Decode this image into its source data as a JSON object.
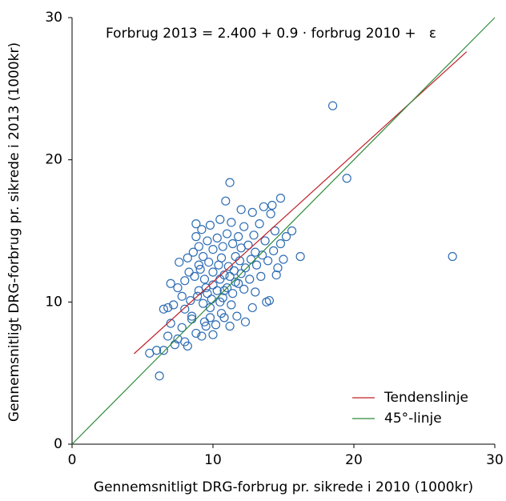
{
  "chart_data": {
    "type": "scatter",
    "annotation": "Forbrug 2013 = 2.400 + 0.9 · forbrug 2010 +   ε",
    "x_label": "Gennemsnitligt DRG-forbrug pr. sikrede i 2010 (1000kr)",
    "y_label": "Gennemsnitligt DRG-forbrug pr. sikrede i 2013 (1000kr)",
    "xlim": [
      0,
      30
    ],
    "ylim": [
      0,
      30
    ],
    "xticks": [
      0,
      10,
      20,
      30
    ],
    "yticks": [
      0,
      10,
      20,
      30
    ],
    "legend": "lower right",
    "series": [
      {
        "type": "scatter",
        "color": "#2e6db4",
        "x": [
          6.2,
          5.5,
          6.0,
          6.5,
          6.8,
          7.3,
          7.5,
          8.0,
          8.2,
          7.0,
          6.8,
          6.5,
          7.2,
          7.8,
          8.5,
          8.8,
          9.2,
          9.5,
          9.8,
          10.2,
          10.6,
          11.2,
          11.7,
          12.3,
          8.0,
          8.4,
          8.9,
          9.3,
          9.6,
          9.9,
          10.3,
          10.7,
          11.0,
          11.4,
          11.8,
          12.2,
          12.6,
          13.0,
          13.4,
          14.0,
          14.5,
          7.5,
          8.0,
          8.3,
          8.7,
          9.1,
          9.4,
          9.7,
          10.0,
          10.4,
          10.8,
          11.1,
          11.5,
          11.9,
          12.3,
          12.7,
          13.1,
          13.5,
          13.9,
          14.3,
          14.8,
          15.0,
          7.0,
          7.6,
          8.2,
          8.6,
          9.0,
          9.3,
          9.6,
          10.0,
          10.3,
          10.7,
          11.0,
          11.4,
          11.8,
          12.2,
          12.5,
          12.9,
          13.3,
          13.7,
          14.1,
          14.4,
          8.8,
          9.2,
          9.8,
          10.5,
          11.3,
          12.0,
          12.8,
          13.6,
          14.2,
          8.8,
          10.9,
          11.2,
          14.8,
          16.2,
          18.5,
          19.5,
          27.0,
          10.0,
          10.5,
          11.2,
          9.5,
          10.8,
          11.6,
          12.0,
          9.0,
          9.8,
          10.5,
          11.3,
          12.8,
          13.8,
          14.6,
          15.2,
          15.6,
          8.5,
          7.8,
          9.4,
          10.0,
          10.8,
          12.0,
          13.0,
          11.6,
          10.6,
          9.0
        ],
        "values": [
          4.8,
          6.4,
          6.6,
          6.6,
          7.6,
          7.0,
          7.4,
          7.2,
          6.9,
          8.5,
          9.6,
          9.5,
          9.8,
          8.2,
          8.8,
          7.8,
          7.6,
          8.3,
          8.9,
          8.4,
          9.2,
          8.3,
          9.0,
          8.6,
          9.5,
          10.1,
          10.4,
          9.9,
          10.6,
          10.2,
          10.8,
          10.3,
          11.0,
          10.6,
          11.3,
          10.9,
          11.6,
          10.7,
          11.8,
          10.1,
          11.9,
          11.0,
          11.5,
          12.1,
          11.8,
          12.3,
          11.6,
          12.8,
          12.1,
          12.6,
          11.9,
          12.5,
          12.2,
          12.9,
          12.4,
          13.0,
          12.6,
          13.3,
          12.9,
          13.6,
          14.1,
          13.0,
          11.3,
          12.8,
          13.1,
          13.5,
          13.9,
          13.2,
          14.3,
          13.7,
          14.5,
          13.9,
          14.8,
          14.1,
          14.6,
          15.3,
          14.0,
          14.7,
          15.5,
          14.3,
          16.2,
          15.0,
          14.6,
          15.1,
          15.4,
          15.8,
          15.6,
          16.5,
          16.3,
          16.7,
          16.8,
          15.5,
          17.1,
          18.4,
          17.3,
          13.2,
          23.8,
          18.7,
          13.2,
          11.2,
          11.6,
          11.8,
          11.0,
          10.8,
          11.4,
          12.0,
          10.8,
          9.6,
          10.0,
          9.8,
          9.6,
          10.0,
          12.4,
          14.6,
          15.0,
          9.0,
          10.4,
          8.6,
          7.7,
          8.9,
          13.8,
          13.5,
          13.2,
          13.1,
          12.6
        ]
      },
      {
        "type": "line",
        "name": "Tendenslinje",
        "color": "#c0202a",
        "x": [
          4.4,
          28
        ],
        "values": [
          6.36,
          27.6
        ]
      },
      {
        "type": "line",
        "name": "45°-linje",
        "color": "#2e8b3a",
        "x": [
          0,
          30
        ],
        "values": [
          0,
          30
        ]
      }
    ]
  }
}
